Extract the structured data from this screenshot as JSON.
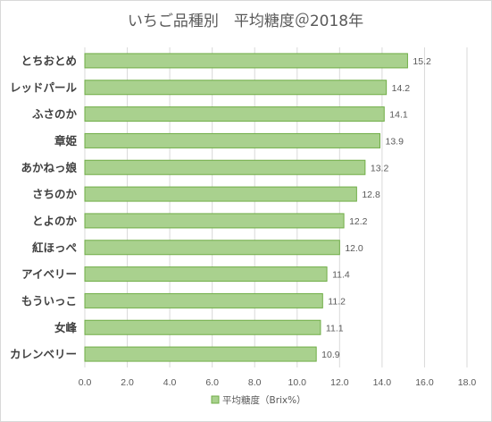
{
  "chart_data": {
    "type": "bar",
    "orientation": "horizontal",
    "title": "いちご品種別　平均糖度＠2018年",
    "categories": [
      "とちおとめ",
      "レッドパール",
      "ふさのか",
      "章姫",
      "あかねっ娘",
      "さちのか",
      "とよのか",
      "紅ほっぺ",
      "アイベリー",
      "もういっこ",
      "女峰",
      "カレンベリー"
    ],
    "series": [
      {
        "name": "平均糖度（Brix%）",
        "values": [
          15.2,
          14.2,
          14.1,
          13.9,
          13.2,
          12.8,
          12.2,
          12.0,
          11.4,
          11.2,
          11.1,
          10.9
        ],
        "color": "#a9d18e",
        "stroke": "#70ad47"
      }
    ],
    "value_labels": [
      "15.2",
      "14.2",
      "14.1",
      "13.9",
      "13.2",
      "12.8",
      "12.2",
      "12.0",
      "11.4",
      "11.2",
      "11.1",
      "10.9"
    ],
    "x_ticks": [
      "0.0",
      "2.0",
      "4.0",
      "6.0",
      "8.0",
      "10.0",
      "12.0",
      "14.0",
      "16.0",
      "18.0"
    ],
    "xlim": [
      0,
      18
    ],
    "grid": true,
    "legend_position": "bottom"
  }
}
